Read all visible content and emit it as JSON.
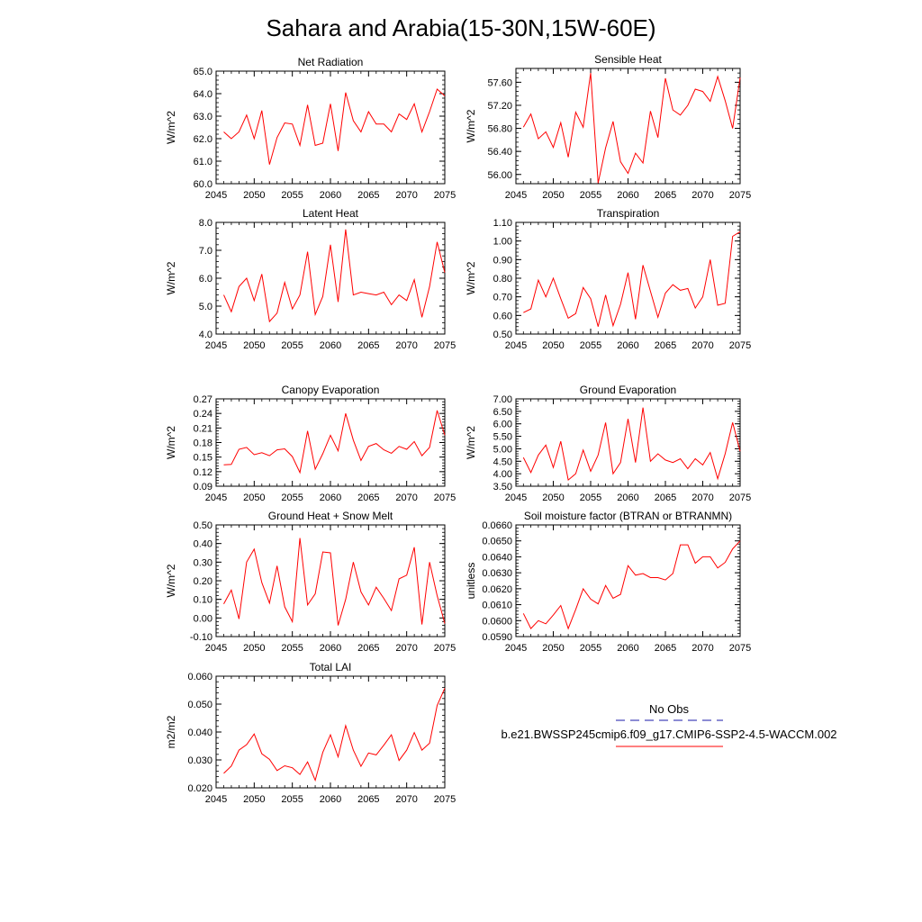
{
  "page_title": "Sahara and Arabia(15-30N,15W-60E)",
  "legend": {
    "obs_label": "No Obs",
    "obs_color": "#1a1aa8",
    "model_label": "b.e21.BWSSP245cmip6.f09_g17.CMIP6-SSP2-4.5-WACCM.002",
    "model_color": "#ff0000"
  },
  "chart_data": [
    {
      "type": "line",
      "title": "Net Radiation",
      "ylabel": "W/m^2",
      "xlabel": "",
      "xlim": [
        2045,
        2075
      ],
      "ylim": [
        60.0,
        65.0
      ],
      "x_ticks": [
        "2045",
        "2050",
        "2055",
        "2060",
        "2065",
        "2070",
        "2075"
      ],
      "y_ticks": [
        "60.0",
        "61.0",
        "62.0",
        "63.0",
        "64.0",
        "65.0"
      ],
      "series": [
        {
          "x_start": 2046,
          "values": [
            62.3,
            62.0,
            62.3,
            63.05,
            62.0,
            63.25,
            60.85,
            62.05,
            62.7,
            62.65,
            61.7,
            63.5,
            61.7,
            61.8,
            63.55,
            61.45,
            64.05,
            62.8,
            62.3,
            63.2,
            62.65,
            62.65,
            62.3,
            63.1,
            62.85,
            63.55,
            62.3,
            63.2,
            64.2,
            63.9
          ]
        }
      ]
    },
    {
      "type": "line",
      "title": "Sensible Heat",
      "ylabel": "W/m^2",
      "xlabel": "",
      "xlim": [
        2045,
        2075
      ],
      "ylim": [
        55.84,
        57.84
      ],
      "x_ticks": [
        "2045",
        "2050",
        "2055",
        "2060",
        "2065",
        "2070",
        "2075"
      ],
      "y_ticks": [
        "56.00",
        "56.40",
        "56.80",
        "57.20",
        "57.60"
      ],
      "series": [
        {
          "x_start": 2046,
          "values": [
            56.82,
            57.05,
            56.62,
            56.74,
            56.47,
            56.9,
            56.3,
            57.08,
            56.82,
            57.76,
            55.85,
            56.46,
            56.92,
            56.22,
            56.02,
            56.37,
            56.2,
            57.1,
            56.64,
            57.67,
            57.12,
            57.03,
            57.2,
            57.48,
            57.44,
            57.27,
            57.7,
            57.28,
            56.8,
            57.68
          ]
        }
      ]
    },
    {
      "type": "line",
      "title": "Latent Heat",
      "ylabel": "W/m^2",
      "xlabel": "",
      "xlim": [
        2045,
        2075
      ],
      "ylim": [
        4.0,
        8.0
      ],
      "x_ticks": [
        "2045",
        "2050",
        "2055",
        "2060",
        "2065",
        "2070",
        "2075"
      ],
      "y_ticks": [
        "4.0",
        "5.0",
        "6.0",
        "7.0",
        "8.0"
      ],
      "series": [
        {
          "x_start": 2046,
          "values": [
            5.4,
            4.8,
            5.7,
            6.0,
            5.2,
            6.15,
            4.45,
            4.75,
            5.85,
            4.9,
            5.4,
            6.95,
            4.7,
            5.35,
            7.2,
            5.15,
            7.75,
            5.4,
            5.5,
            5.45,
            5.4,
            5.5,
            5.05,
            5.4,
            5.2,
            5.95,
            4.6,
            5.7,
            7.3,
            6.2
          ]
        }
      ]
    },
    {
      "type": "line",
      "title": "Transpiration",
      "ylabel": "W/m^2",
      "xlabel": "",
      "xlim": [
        2045,
        2075
      ],
      "ylim": [
        0.5,
        1.1
      ],
      "x_ticks": [
        "2045",
        "2050",
        "2055",
        "2060",
        "2065",
        "2070",
        "2075"
      ],
      "y_ticks": [
        "0.50",
        "0.60",
        "0.70",
        "0.80",
        "0.90",
        "1.00",
        "1.10"
      ],
      "series": [
        {
          "x_start": 2046,
          "values": [
            0.615,
            0.635,
            0.79,
            0.7,
            0.8,
            0.69,
            0.585,
            0.61,
            0.75,
            0.69,
            0.54,
            0.71,
            0.545,
            0.66,
            0.83,
            0.58,
            0.87,
            0.73,
            0.59,
            0.72,
            0.765,
            0.735,
            0.745,
            0.64,
            0.7,
            0.9,
            0.655,
            0.665,
            1.025,
            1.05
          ]
        }
      ]
    },
    {
      "type": "line",
      "title": "Canopy Evaporation",
      "ylabel": "W/m^2",
      "xlabel": "",
      "xlim": [
        2045,
        2075
      ],
      "ylim": [
        0.09,
        0.27
      ],
      "x_ticks": [
        "2045",
        "2050",
        "2055",
        "2060",
        "2065",
        "2070",
        "2075"
      ],
      "y_ticks": [
        "0.09",
        "0.12",
        "0.15",
        "0.18",
        "0.21",
        "0.24",
        "0.27"
      ],
      "series": [
        {
          "x_start": 2046,
          "values": [
            0.134,
            0.135,
            0.166,
            0.17,
            0.155,
            0.159,
            0.153,
            0.165,
            0.167,
            0.151,
            0.118,
            0.204,
            0.125,
            0.157,
            0.195,
            0.163,
            0.24,
            0.185,
            0.143,
            0.172,
            0.178,
            0.165,
            0.158,
            0.172,
            0.166,
            0.182,
            0.153,
            0.17,
            0.246,
            0.195
          ]
        }
      ]
    },
    {
      "type": "line",
      "title": "Ground Evaporation",
      "ylabel": "W/m^2",
      "xlabel": "",
      "xlim": [
        2045,
        2075
      ],
      "ylim": [
        3.5,
        7.0
      ],
      "x_ticks": [
        "2045",
        "2050",
        "2055",
        "2060",
        "2065",
        "2070",
        "2075"
      ],
      "y_ticks": [
        "3.50",
        "4.00",
        "4.50",
        "5.00",
        "5.50",
        "6.00",
        "6.50",
        "7.00"
      ],
      "series": [
        {
          "x_start": 2046,
          "values": [
            4.65,
            4.05,
            4.75,
            5.15,
            4.25,
            5.3,
            3.75,
            4.0,
            4.95,
            4.1,
            4.75,
            6.05,
            4.0,
            4.45,
            6.2,
            4.45,
            6.65,
            4.5,
            4.8,
            4.55,
            4.45,
            4.6,
            4.2,
            4.6,
            4.35,
            4.85,
            3.8,
            4.8,
            6.05,
            4.9
          ]
        }
      ]
    },
    {
      "type": "line",
      "title": "Ground Heat + Snow Melt",
      "ylabel": "W/m^2",
      "xlabel": "",
      "xlim": [
        2045,
        2075
      ],
      "ylim": [
        -0.1,
        0.5
      ],
      "x_ticks": [
        "2045",
        "2050",
        "2055",
        "2060",
        "2065",
        "2070",
        "2075"
      ],
      "y_ticks": [
        "-0.10",
        "0.00",
        "0.10",
        "0.20",
        "0.30",
        "0.40",
        "0.50"
      ],
      "series": [
        {
          "x_start": 2046,
          "values": [
            0.075,
            0.15,
            -0.005,
            0.3,
            0.37,
            0.19,
            0.08,
            0.28,
            0.06,
            -0.02,
            0.43,
            0.07,
            0.13,
            0.355,
            0.35,
            -0.04,
            0.1,
            0.3,
            0.14,
            0.07,
            0.165,
            0.105,
            0.04,
            0.21,
            0.23,
            0.38,
            -0.035,
            0.3,
            0.12,
            -0.03
          ]
        }
      ]
    },
    {
      "type": "line",
      "title": "Soil moisture factor (BTRAN or BTRANMN)",
      "ylabel": "unitless",
      "xlabel": "",
      "xlim": [
        2045,
        2075
      ],
      "ylim": [
        0.059,
        0.066
      ],
      "x_ticks": [
        "2045",
        "2050",
        "2055",
        "2060",
        "2065",
        "2070",
        "2075"
      ],
      "y_ticks": [
        "0.0590",
        "0.0600",
        "0.0610",
        "0.0620",
        "0.0630",
        "0.0640",
        "0.0650",
        "0.0660"
      ],
      "series": [
        {
          "x_start": 2046,
          "values": [
            0.06045,
            0.0595,
            0.06,
            0.0598,
            0.06035,
            0.06095,
            0.0595,
            0.0607,
            0.062,
            0.06135,
            0.06105,
            0.0622,
            0.0614,
            0.06165,
            0.06345,
            0.06285,
            0.06295,
            0.0627,
            0.0627,
            0.06255,
            0.06295,
            0.06475,
            0.06475,
            0.0636,
            0.064,
            0.064,
            0.0633,
            0.06365,
            0.0645,
            0.065
          ]
        }
      ]
    },
    {
      "type": "line",
      "title": "Total LAI",
      "ylabel": "m2/m2",
      "xlabel": "",
      "xlim": [
        2045,
        2075
      ],
      "ylim": [
        0.02,
        0.06
      ],
      "x_ticks": [
        "2045",
        "2050",
        "2055",
        "2060",
        "2065",
        "2070",
        "2075"
      ],
      "y_ticks": [
        "0.020",
        "0.030",
        "0.040",
        "0.050",
        "0.060"
      ],
      "series": [
        {
          "x_start": 2046,
          "values": [
            0.0252,
            0.0278,
            0.0335,
            0.0355,
            0.0393,
            0.0322,
            0.0302,
            0.0262,
            0.0279,
            0.0272,
            0.0248,
            0.0293,
            0.0227,
            0.0327,
            0.039,
            0.0311,
            0.0423,
            0.0335,
            0.0277,
            0.0325,
            0.0318,
            0.0353,
            0.039,
            0.0298,
            0.0335,
            0.0398,
            0.0335,
            0.036,
            0.0495,
            0.0557
          ]
        }
      ]
    }
  ]
}
